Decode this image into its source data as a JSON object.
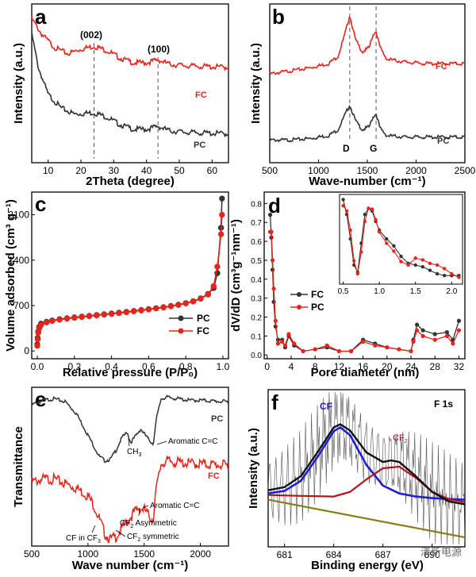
{
  "colors": {
    "red": "#e8241b",
    "black": "#333333",
    "blue": "#1f1fd6",
    "darkred": "#b0141a",
    "olive": "#8a7d18"
  },
  "chart_data": [
    {
      "panel": "a",
      "type": "line",
      "xlabel": "2Theta (degree)",
      "ylabel": "Intensity (a.u.)",
      "xlim": [
        5,
        65
      ],
      "xticks": [
        "10",
        "20",
        "30",
        "40",
        "50",
        "60"
      ],
      "annotations": [
        {
          "label": "(002)",
          "x": 24
        },
        {
          "label": "(100)",
          "x": 43.5
        }
      ],
      "series": [
        {
          "name": "FC",
          "color": "#e8241b",
          "x": [
            5,
            8,
            12,
            16,
            20,
            24,
            28,
            32,
            36,
            40,
            43.5,
            47,
            52,
            58,
            65
          ],
          "y": [
            9.6,
            8.6,
            7.7,
            7.3,
            7.6,
            7.8,
            7.5,
            7.0,
            6.7,
            6.7,
            6.9,
            6.6,
            6.5,
            6.45,
            6.4
          ]
        },
        {
          "name": "PC",
          "color": "#333333",
          "x": [
            5,
            7,
            10,
            14,
            18,
            24,
            28,
            32,
            36,
            40,
            43.5,
            47,
            52,
            58,
            65
          ],
          "y": [
            8.6,
            6.4,
            4.6,
            3.7,
            3.3,
            3.4,
            3.1,
            2.6,
            2.3,
            2.3,
            2.5,
            2.2,
            2.1,
            2.05,
            2.0
          ]
        }
      ]
    },
    {
      "panel": "b",
      "type": "line",
      "xlabel": "Wave-number (cm⁻¹)",
      "ylabel": "Intensity (a.u.)",
      "xlim": [
        500,
        2500
      ],
      "xticks": [
        "500",
        "1000",
        "1500",
        "2000",
        "2500"
      ],
      "annotations": [
        {
          "label": "D",
          "x": 1320
        },
        {
          "label": "G",
          "x": 1590
        }
      ],
      "series": [
        {
          "name": "FC",
          "color": "#e8241b",
          "x": [
            500,
            700,
            900,
            1100,
            1200,
            1270,
            1320,
            1380,
            1450,
            1520,
            1560,
            1590,
            1630,
            1700,
            1900,
            2100,
            2300,
            2500
          ],
          "y": [
            6.1,
            6.3,
            6.5,
            6.8,
            7.3,
            8.8,
            10.1,
            8.4,
            7.6,
            7.9,
            8.8,
            9.0,
            7.9,
            7.1,
            6.9,
            6.8,
            6.8,
            6.8
          ]
        },
        {
          "name": "PC",
          "color": "#333333",
          "x": [
            500,
            700,
            900,
            1100,
            1200,
            1270,
            1320,
            1380,
            1450,
            1520,
            1560,
            1590,
            1630,
            1700,
            1900,
            2100,
            2300,
            2500
          ],
          "y": [
            1.6,
            1.6,
            1.7,
            1.9,
            2.3,
            3.3,
            4.0,
            2.9,
            2.3,
            2.5,
            3.2,
            3.4,
            2.4,
            1.9,
            1.8,
            1.8,
            1.8,
            1.8
          ]
        }
      ]
    },
    {
      "panel": "c",
      "type": "line",
      "xlabel": "Relative pressure (P/P₀)",
      "ylabel": "Volume adsorbed (cm³ g⁻¹)",
      "xlim": [
        -0.03,
        1.03
      ],
      "ylim": [
        -120,
        2450
      ],
      "xticks": [
        "0.0",
        "0.2",
        "0.4",
        "0.6",
        "0.8",
        "1.0"
      ],
      "yticks": [
        "0",
        "700",
        "1400",
        "2100"
      ],
      "series": [
        {
          "name": "PC",
          "color": "#333333",
          "x": [
            0.0,
            0.002,
            0.005,
            0.01,
            0.02,
            0.05,
            0.08,
            0.12,
            0.16,
            0.2,
            0.24,
            0.28,
            0.32,
            0.36,
            0.4,
            0.44,
            0.48,
            0.52,
            0.56,
            0.6,
            0.64,
            0.68,
            0.72,
            0.76,
            0.8,
            0.84,
            0.88,
            0.92,
            0.95,
            0.97,
            0.99,
            0.995
          ],
          "y": [
            100,
            200,
            300,
            370,
            420,
            450,
            470,
            490,
            505,
            518,
            530,
            542,
            554,
            566,
            578,
            590,
            603,
            617,
            631,
            645,
            660,
            676,
            694,
            714,
            738,
            768,
            810,
            880,
            970,
            1200,
            1900,
            2350
          ]
        },
        {
          "name": "FC",
          "color": "#e8241b",
          "x": [
            0.0,
            0.002,
            0.005,
            0.01,
            0.02,
            0.05,
            0.08,
            0.12,
            0.16,
            0.2,
            0.24,
            0.28,
            0.32,
            0.36,
            0.4,
            0.44,
            0.48,
            0.52,
            0.56,
            0.6,
            0.64,
            0.68,
            0.72,
            0.76,
            0.8,
            0.84,
            0.88,
            0.92,
            0.95,
            0.97,
            0.99,
            0.995
          ],
          "y": [
            80,
            180,
            280,
            350,
            400,
            440,
            462,
            482,
            498,
            512,
            524,
            536,
            548,
            560,
            572,
            584,
            597,
            611,
            625,
            640,
            655,
            671,
            689,
            709,
            733,
            763,
            805,
            870,
            1000,
            1300,
            1800,
            2100
          ]
        }
      ]
    },
    {
      "panel": "d",
      "type": "line",
      "xlabel": "Pore diameter (nm)",
      "ylabel": "dV/dD (cm³g⁻¹nm⁻¹)",
      "xlim": [
        -0.5,
        33
      ],
      "ylim": [
        -0.02,
        0.86
      ],
      "xticks": [
        "0",
        "4",
        "8",
        "12",
        "16",
        "20",
        "24",
        "28",
        "32"
      ],
      "yticks": [
        "0.0",
        "0.1",
        "0.2",
        "0.3",
        "0.4",
        "0.5",
        "0.6",
        "0.7",
        "0.8"
      ],
      "series": [
        {
          "name": "FC",
          "color": "#333333",
          "x": [
            0.5,
            0.7,
            0.9,
            1.1,
            1.4,
            1.8,
            2.5,
            3.0,
            3.6,
            4.5,
            6,
            8,
            10,
            12,
            14,
            16,
            18,
            20,
            22,
            24,
            24.4,
            25,
            26,
            28,
            30,
            31,
            32
          ],
          "y": [
            0.74,
            0.62,
            0.45,
            0.28,
            0.15,
            0.08,
            0.08,
            0.04,
            0.1,
            0.05,
            0.02,
            0.03,
            0.04,
            0.02,
            0.02,
            0.08,
            0.06,
            0.04,
            0.03,
            0.02,
            0.08,
            0.16,
            0.13,
            0.11,
            0.12,
            0.08,
            0.18
          ]
        },
        {
          "name": "PC",
          "color": "#e8241b",
          "x": [
            0.5,
            0.7,
            0.9,
            1.1,
            1.4,
            1.8,
            2.5,
            3.0,
            3.6,
            4.5,
            6,
            8,
            10,
            12,
            14,
            16,
            18,
            20,
            22,
            24,
            24.4,
            25,
            26,
            28,
            30,
            31,
            32
          ],
          "y": [
            0.65,
            0.65,
            0.5,
            0.35,
            0.18,
            0.06,
            0.07,
            0.05,
            0.11,
            0.06,
            0.02,
            0.03,
            0.05,
            0.02,
            0.02,
            0.07,
            0.05,
            0.04,
            0.03,
            0.02,
            0.07,
            0.13,
            0.1,
            0.08,
            0.1,
            0.06,
            0.13
          ]
        }
      ],
      "inset": {
        "xlim": [
          0.45,
          2.15
        ],
        "xticks": [
          "0.5",
          "1.0",
          "1.5",
          "2.0"
        ]
      }
    },
    {
      "panel": "e",
      "type": "line",
      "xlabel": "Wave number (cm⁻¹)",
      "ylabel": "Transmittance",
      "xlim": [
        500,
        2250
      ],
      "xticks": [
        "500",
        "1000",
        "1500",
        "2000"
      ],
      "annotations": [
        "CH3",
        "Aromatic C=C",
        "Aromatic C=C",
        "CF2 Asymmetric",
        "CF in CF3",
        "CF2 symmetric"
      ],
      "series": [
        {
          "name": "PC",
          "color": "#333333",
          "x": [
            500,
            600,
            700,
            800,
            900,
            1000,
            1100,
            1150,
            1200,
            1250,
            1300,
            1350,
            1380,
            1420,
            1470,
            1530,
            1580,
            1610,
            1650,
            1700,
            1800,
            1900,
            2000,
            2100,
            2250
          ],
          "y": [
            9.4,
            9.7,
            9.8,
            9.6,
            8.8,
            7.4,
            6.0,
            5.7,
            5.8,
            6.4,
            7.2,
            7.6,
            6.9,
            7.3,
            7.8,
            7.2,
            6.8,
            8.5,
            9.8,
            9.9,
            9.8,
            9.7,
            9.7,
            9.65,
            9.6
          ]
        },
        {
          "name": "FC",
          "color": "#e8241b",
          "x": [
            500,
            600,
            700,
            800,
            900,
            1000,
            1050,
            1100,
            1150,
            1200,
            1250,
            1300,
            1350,
            1400,
            1450,
            1500,
            1550,
            1580,
            1600,
            1650,
            1700,
            1800,
            2000,
            2250
          ],
          "y": [
            4.4,
            4.6,
            4.6,
            4.3,
            4.0,
            3.5,
            2.9,
            2.0,
            1.0,
            0.6,
            0.8,
            1.3,
            1.8,
            2.3,
            2.7,
            2.6,
            2.1,
            1.9,
            3.6,
            5.6,
            5.8,
            5.7,
            5.6,
            5.5
          ]
        }
      ]
    },
    {
      "panel": "f",
      "type": "line",
      "xlabel": "Binding energy (eV)",
      "ylabel": "Intensity (a.u.)",
      "xlim": [
        680,
        692
      ],
      "xticks": [
        "681",
        "684",
        "687",
        "690"
      ],
      "annotations": [
        "F 1s",
        "CF",
        "CF2"
      ],
      "series": [
        {
          "name": "CF",
          "color": "#1f1fd6",
          "x": [
            680,
            681,
            682,
            683,
            684,
            684.4,
            685,
            686,
            687,
            688,
            689,
            690,
            691,
            692
          ],
          "y": [
            0.3,
            0.38,
            0.7,
            1.45,
            2.28,
            2.4,
            2.15,
            1.2,
            0.55,
            0.3,
            0.2,
            0.15,
            0.12,
            0.1
          ]
        },
        {
          "name": "CF2",
          "color": "#b0141a",
          "x": [
            680,
            682,
            684,
            685,
            686,
            687,
            688,
            689,
            690,
            691,
            692
          ],
          "y": [
            0.25,
            0.22,
            0.2,
            0.35,
            0.75,
            1.1,
            1.15,
            0.8,
            0.35,
            0.12,
            0.02
          ]
        },
        {
          "name": "Baseline",
          "color": "#8a7d18",
          "x": [
            680,
            692
          ],
          "y": [
            0.1,
            -1.1
          ]
        },
        {
          "name": "Envelope",
          "color": "#111111",
          "x": [
            680,
            681,
            682,
            683,
            684,
            684.4,
            685,
            686,
            687,
            687.5,
            688,
            689,
            690,
            691,
            692
          ],
          "y": [
            0.4,
            0.5,
            0.85,
            1.6,
            2.4,
            2.5,
            2.3,
            1.6,
            1.3,
            1.35,
            1.3,
            0.85,
            0.35,
            0.05,
            -0.05
          ]
        }
      ]
    }
  ],
  "panels": {
    "a": {
      "letter": "a",
      "fc_label": "FC",
      "pc_label": "PC",
      "peak1": "(002)",
      "peak2": "(100)"
    },
    "b": {
      "letter": "b",
      "fc_label": "FC",
      "pc_label": "PC",
      "d_label": "D",
      "g_label": "G"
    },
    "c": {
      "letter": "c",
      "legend_pc": "PC",
      "legend_fc": "FC"
    },
    "d": {
      "letter": "d",
      "legend_fc": "FC",
      "legend_pc": "PC"
    },
    "e": {
      "letter": "e",
      "pc_label": "PC",
      "fc_label": "FC",
      "ch3": "CH",
      "ch3_sub": "3",
      "arom1": "Aromatic C=C",
      "arom2": "Aromatic C=C",
      "cf2_asym": "CF",
      "cf2_asym_sub": "2",
      "cf2_asym_rest": " Asymmetric",
      "cf_in": "CF in CF",
      "cf_in_sub": "3",
      "cf2_sym": "CF",
      "cf2_sym_sub": "2",
      "cf2_sym_rest": " symmetric"
    },
    "f": {
      "letter": "f",
      "title": "F 1s",
      "cf": "CF",
      "cf2": "CF",
      "cf2_sub": "2",
      "watermark": "清新电源"
    }
  }
}
